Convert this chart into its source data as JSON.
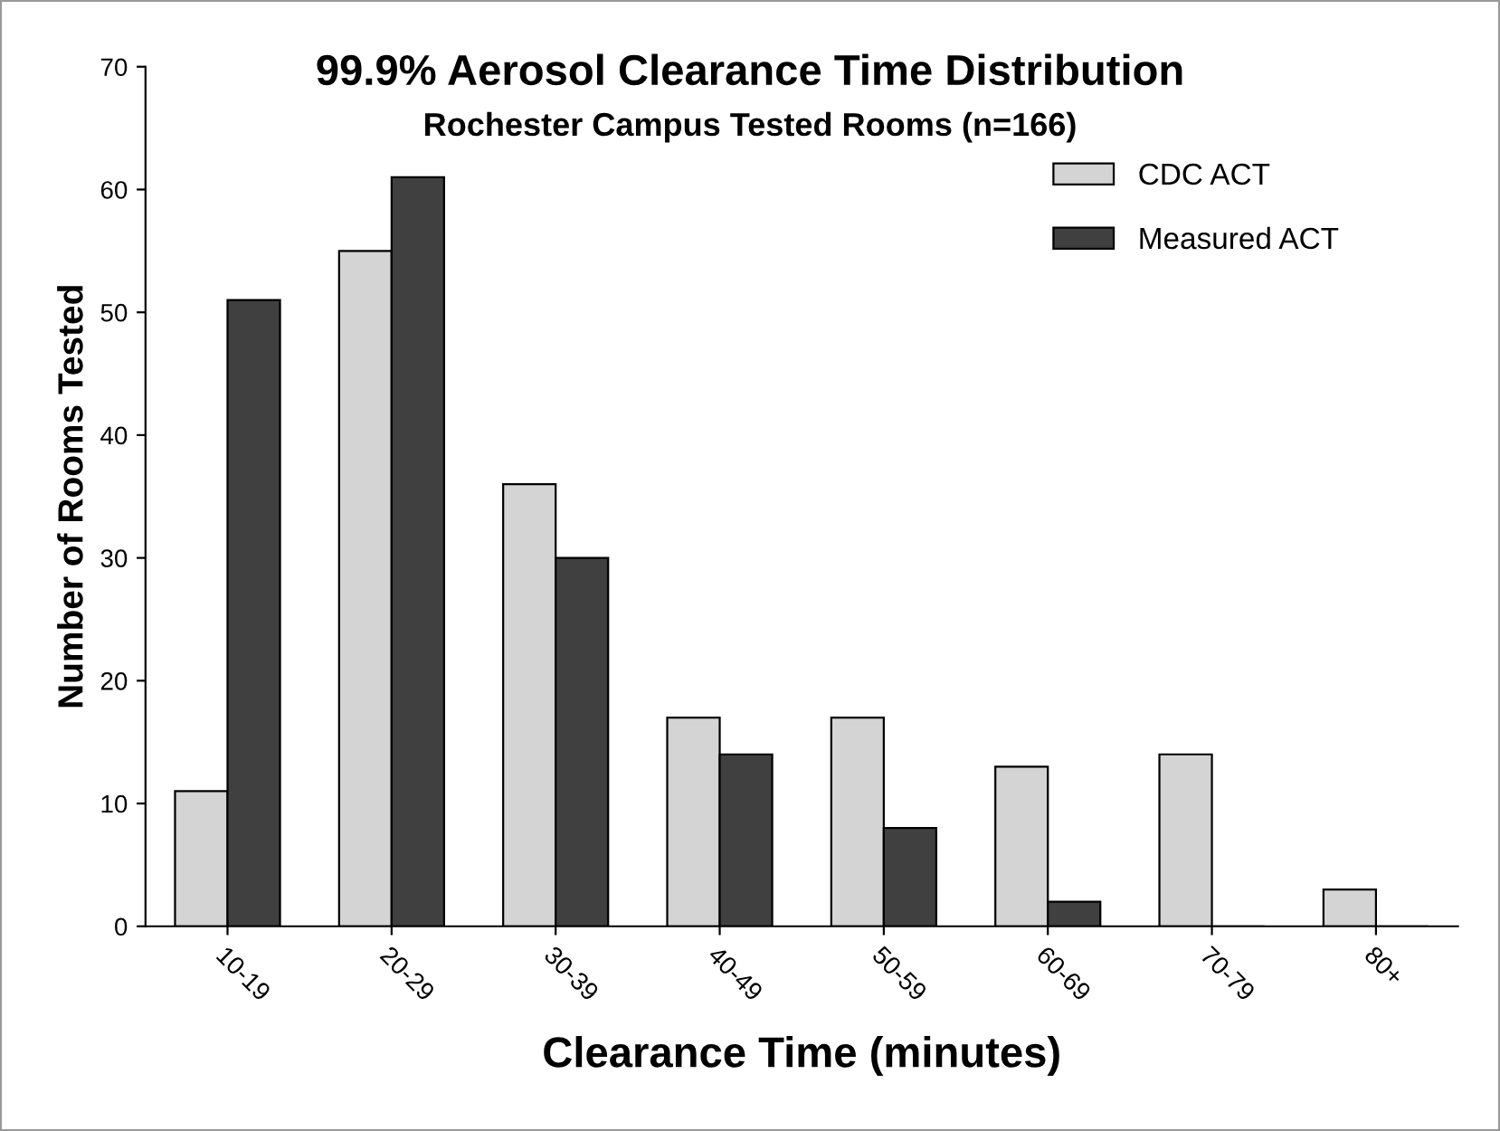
{
  "chart_data": {
    "type": "bar",
    "title": "99.9% Aerosol Clearance Time Distribution",
    "subtitle": "Rochester Campus Tested Rooms (n=166)",
    "xlabel": "Clearance Time (minutes)",
    "ylabel": "Number of Rooms Tested",
    "categories": [
      "10-19",
      "20-29",
      "30-39",
      "40-49",
      "50-59",
      "60-69",
      "70-79",
      "80+"
    ],
    "series": [
      {
        "name": "CDC ACT",
        "color": "#d4d4d4",
        "values": [
          11,
          55,
          36,
          17,
          17,
          13,
          14,
          3
        ]
      },
      {
        "name": "Measured ACT",
        "color": "#404040",
        "values": [
          51,
          61,
          30,
          14,
          8,
          2,
          0,
          0
        ]
      }
    ],
    "ylim": [
      0,
      70
    ],
    "yticks": [
      0,
      10,
      20,
      30,
      40,
      50,
      60,
      70
    ],
    "grid": false,
    "legend": "top right"
  }
}
